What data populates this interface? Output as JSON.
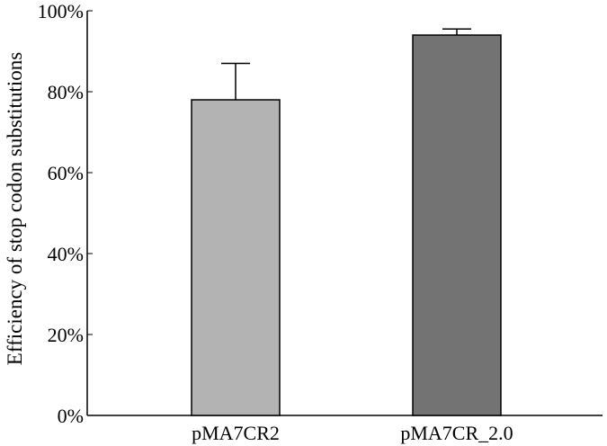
{
  "chart_data": {
    "type": "bar",
    "categories": [
      "pMA7CR2",
      "pMA7CR_2.0"
    ],
    "values": [
      78,
      94
    ],
    "error_bars": [
      9,
      1.5
    ],
    "title": "",
    "xlabel": "",
    "ylabel": "Efficiency of stop codon substitutions",
    "ylim": [
      0,
      100
    ],
    "y_ticks": [
      "0%",
      "20%",
      "40%",
      "60%",
      "80%",
      "100%"
    ],
    "grid": false,
    "legend": "none",
    "colors": [
      "#b3b3b3",
      "#737373"
    ]
  }
}
